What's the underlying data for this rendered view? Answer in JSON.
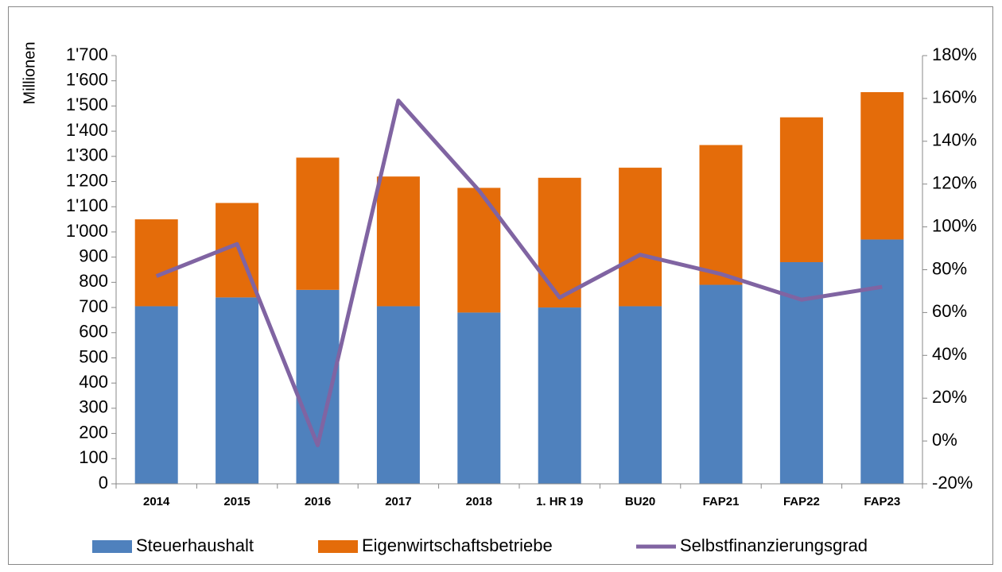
{
  "chart_data": {
    "type": "bar",
    "y_axis_label": "Millionen",
    "categories": [
      "2014",
      "2015",
      "2016",
      "2017",
      "2018",
      "1. HR 19",
      "BU20",
      "FAP21",
      "FAP22",
      "FAP23"
    ],
    "series": [
      {
        "name": "Steuerhaushalt",
        "color": "#4f81bd",
        "values": [
          705,
          740,
          770,
          705,
          680,
          700,
          705,
          790,
          880,
          970
        ]
      },
      {
        "name": "Eigenwirtschaftsbetriebe",
        "color": "#e46c0a",
        "values": [
          345,
          375,
          525,
          515,
          495,
          515,
          550,
          555,
          575,
          585
        ]
      },
      {
        "name": "Selbstfinanzierungsgrad",
        "color": "#8064a2",
        "type": "line",
        "axis": "y2",
        "values": [
          77,
          92,
          -2,
          159,
          117,
          67,
          87,
          78,
          66,
          72
        ]
      }
    ],
    "stacked": true,
    "ylim": [
      0,
      1700
    ],
    "yticks": [
      0,
      100,
      200,
      300,
      400,
      500,
      600,
      700,
      800,
      900,
      {
        "value": 1000,
        "label": "1'000"
      },
      {
        "value": 1100,
        "label": "1'100"
      },
      {
        "value": 1200,
        "label": "1'200"
      },
      {
        "value": 1300,
        "label": "1'300"
      },
      {
        "value": 1400,
        "label": "1'400"
      },
      {
        "value": 1500,
        "label": "1'500"
      },
      {
        "value": 1600,
        "label": "1'600"
      },
      {
        "value": 1700,
        "label": "1'700"
      }
    ],
    "y2lim": [
      -20,
      180
    ],
    "y2ticks": [
      {
        "value": -20,
        "label": "-20%"
      },
      {
        "value": 0,
        "label": "0%"
      },
      {
        "value": 20,
        "label": "20%"
      },
      {
        "value": 40,
        "label": "40%"
      },
      {
        "value": 60,
        "label": "60%"
      },
      {
        "value": 80,
        "label": "80%"
      },
      {
        "value": 100,
        "label": "100%"
      },
      {
        "value": 120,
        "label": "120%"
      },
      {
        "value": 140,
        "label": "140%"
      },
      {
        "value": 160,
        "label": "160%"
      },
      {
        "value": 180,
        "label": "180%"
      }
    ],
    "legend": "bottom"
  }
}
